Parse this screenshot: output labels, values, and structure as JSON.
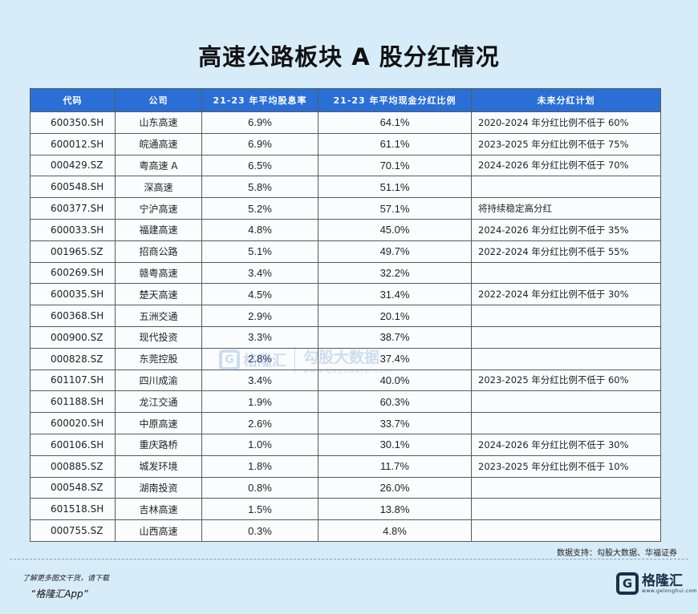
{
  "title": "高速公路板块 A 股分红情况",
  "table": {
    "headers": [
      "代码",
      "公司",
      "21-23 年平均股息率",
      "21-23 年平均现金分红比例",
      "未来分红计划"
    ],
    "rows": [
      [
        "600350.SH",
        "山东高速",
        "6.9%",
        "64.1%",
        "2020-2024 年分红比例不低于 60%"
      ],
      [
        "600012.SH",
        "皖通高速",
        "6.9%",
        "61.1%",
        "2023-2025 年分红比例不低于 75%"
      ],
      [
        "000429.SZ",
        "粤高速 A",
        "6.5%",
        "70.1%",
        "2024-2026 年分红比例不低于 70%"
      ],
      [
        "600548.SH",
        "深高速",
        "5.8%",
        "51.1%",
        ""
      ],
      [
        "600377.SH",
        "宁沪高速",
        "5.2%",
        "57.1%",
        "将持续稳定高分红"
      ],
      [
        "600033.SH",
        "福建高速",
        "4.8%",
        "45.0%",
        "2024-2026 年分红比例不低于 35%"
      ],
      [
        "001965.SZ",
        "招商公路",
        "5.1%",
        "49.7%",
        "2022-2024 年分红比例不低于 55%"
      ],
      [
        "600269.SH",
        "赣粤高速",
        "3.4%",
        "32.2%",
        ""
      ],
      [
        "600035.SH",
        "楚天高速",
        "4.5%",
        "31.4%",
        "2022-2024 年分红比例不低于 30%"
      ],
      [
        "600368.SH",
        "五洲交通",
        "2.9%",
        "20.1%",
        ""
      ],
      [
        "000900.SZ",
        "现代投资",
        "3.3%",
        "38.7%",
        ""
      ],
      [
        "000828.SZ",
        "东莞控股",
        "2.8%",
        "37.4%",
        ""
      ],
      [
        "601107.SH",
        "四川成渝",
        "3.4%",
        "40.0%",
        "2023-2025 年分红比例不低于 60%"
      ],
      [
        "601188.SH",
        "龙江交通",
        "1.9%",
        "60.3%",
        ""
      ],
      [
        "600020.SH",
        "中原高速",
        "2.6%",
        "33.7%",
        ""
      ],
      [
        "600106.SH",
        "重庆路桥",
        "1.0%",
        "30.1%",
        "2024-2026 年分红比例不低于 30%"
      ],
      [
        "000885.SZ",
        "城发环境",
        "1.8%",
        "11.7%",
        "2023-2025 年分红比例不低于 10%"
      ],
      [
        "000548.SZ",
        "湖南投资",
        "0.8%",
        "26.0%",
        ""
      ],
      [
        "601518.SH",
        "吉林高速",
        "1.5%",
        "13.8%",
        ""
      ],
      [
        "000755.SZ",
        "山西高速",
        "0.3%",
        "4.8%",
        ""
      ]
    ]
  },
  "watermark": {
    "logo_letter": "G",
    "brand": "格隆汇",
    "cn": "勾股大数据",
    "url": "www.gogudata.com"
  },
  "source": "数据支持：勾股大数据、华福证券",
  "footer": {
    "line1": "了解更多图文干货，请下载",
    "line2": "“格隆汇App”",
    "logo_letter": "G",
    "logo_text": "格隆汇",
    "logo_url": "www.gelonghui.com"
  }
}
